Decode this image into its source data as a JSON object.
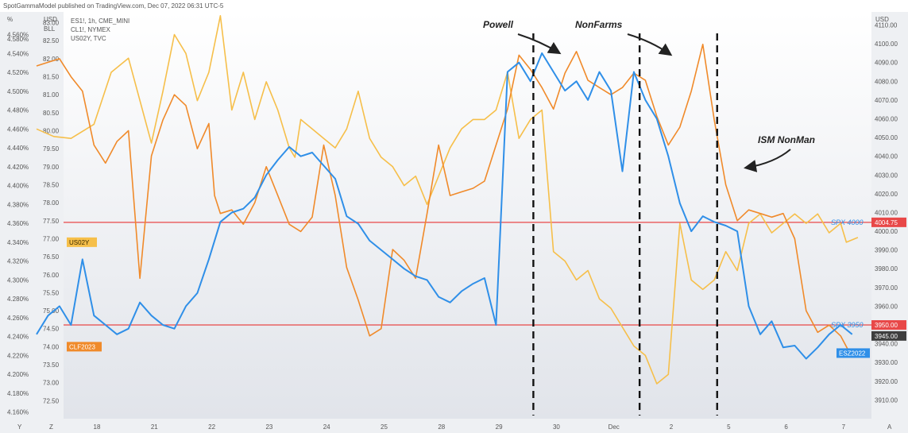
{
  "header": {
    "published": "SpotGammaModel published on TradingView.com, Dec 07, 2022 06:31 UTC-5"
  },
  "scale_headers": {
    "pct": "%",
    "usd_bll": [
      "USD",
      "BLL"
    ],
    "usd_right": "USD"
  },
  "symbols": [
    "ES1!, 1h, CME_MINI",
    "CL1!, NYMEX",
    "US02Y, TVC"
  ],
  "corner_buttons": {
    "y": "Y",
    "z": "Z",
    "a": "A"
  },
  "colors": {
    "spx": "#2f8fe8",
    "crude": "#f08a2a",
    "us02y": "#f6bf4a",
    "levels": "#e84848",
    "dashed": "#111111",
    "bg_top": "#ffffff",
    "bg_bottom": "#e1e4ea",
    "axis_bg": "#eef0f3"
  },
  "chart_data": {
    "type": "line",
    "x": {
      "categories": [
        "18",
        "21",
        "22",
        "23",
        "24",
        "25",
        "28",
        "29",
        "30",
        "Dec",
        "2",
        "5",
        "6",
        "7"
      ]
    },
    "axes": {
      "yield_pct": {
        "ticks": [
          "4.560%",
          "4.540%",
          "4.520%",
          "4.500%",
          "4.480%",
          "4.460%",
          "4.440%",
          "4.420%",
          "4.400%",
          "4.380%",
          "4.360%",
          "4.340%",
          "4.320%",
          "4.300%",
          "4.280%",
          "4.260%",
          "4.240%",
          "4.220%",
          "4.200%",
          "4.180%",
          "4.160%"
        ],
        "top_tick": "4.580%",
        "range": [
          4.153,
          4.584
        ]
      },
      "crude_usd": {
        "ticks": [
          "83.00",
          "82.50",
          "82.00",
          "81.50",
          "81.00",
          "80.50",
          "80.00",
          "79.50",
          "79.00",
          "78.50",
          "78.00",
          "77.50",
          "77.00",
          "76.50",
          "76.00",
          "75.50",
          "75.00",
          "74.50",
          "74.00",
          "73.50",
          "73.00",
          "72.50"
        ],
        "range": [
          72.0,
          83.3
        ]
      },
      "spx_usd": {
        "ticks": [
          "4110.00",
          "4100.00",
          "4090.00",
          "4080.00",
          "4070.00",
          "4060.00",
          "4050.00",
          "4040.00",
          "4030.00",
          "4020.00",
          "4010.00",
          "4000.00",
          "3990.00",
          "3980.00",
          "3970.00",
          "3960.00",
          "3950.00",
          "3940.00",
          "3930.00",
          "3920.00",
          "3910.00"
        ],
        "range": [
          3900,
          4117
        ]
      }
    },
    "series": [
      {
        "name": "US02Y",
        "axis": "yield_pct",
        "x": [
          0,
          0.3,
          0.6,
          1,
          1.3,
          1.6,
          2,
          2.2,
          2.4,
          2.6,
          2.8,
          3,
          3.2,
          3.4,
          3.6,
          3.8,
          4,
          4.2,
          4.4,
          4.5,
          4.6,
          4.8,
          5,
          5.2,
          5.4,
          5.6,
          5.8,
          6,
          6.2,
          6.4,
          6.6,
          6.8,
          7,
          7.2,
          7.4,
          7.6,
          7.8,
          8,
          8.2,
          8.4,
          8.6,
          8.8,
          9,
          9.2,
          9.4,
          9.6,
          9.8,
          10,
          10.2,
          10.4,
          10.6,
          10.8,
          11,
          11.2,
          11.4,
          11.6,
          11.8,
          12,
          12.2,
          12.4,
          12.6,
          12.8,
          13,
          13.2,
          13.4,
          13.6,
          13.8,
          14,
          14.1,
          14.3
        ],
        "values": [
          4.46,
          4.452,
          4.45,
          4.465,
          4.52,
          4.535,
          4.445,
          4.5,
          4.56,
          4.54,
          4.49,
          4.52,
          4.58,
          4.48,
          4.52,
          4.47,
          4.51,
          4.48,
          4.44,
          4.43,
          4.47,
          4.46,
          4.45,
          4.44,
          4.46,
          4.5,
          4.45,
          4.43,
          4.42,
          4.4,
          4.41,
          4.38,
          4.41,
          4.44,
          4.46,
          4.47,
          4.47,
          4.48,
          4.52,
          4.45,
          4.47,
          4.48,
          4.33,
          4.32,
          4.3,
          4.31,
          4.28,
          4.27,
          4.25,
          4.23,
          4.22,
          4.19,
          4.2,
          4.36,
          4.3,
          4.29,
          4.3,
          4.33,
          4.31,
          4.36,
          4.37,
          4.35,
          4.36,
          4.37,
          4.36,
          4.37,
          4.35,
          4.36,
          4.34,
          4.345
        ]
      },
      {
        "name": "CLF2023",
        "axis": "crude_usd",
        "x": [
          0,
          0.2,
          0.4,
          0.6,
          0.8,
          1,
          1.2,
          1.4,
          1.6,
          1.8,
          2,
          2.2,
          2.4,
          2.6,
          2.8,
          3,
          3.1,
          3.2,
          3.4,
          3.6,
          3.8,
          4,
          4.2,
          4.4,
          4.6,
          4.8,
          5,
          5.2,
          5.4,
          5.6,
          5.8,
          6,
          6.2,
          6.4,
          6.6,
          6.8,
          7,
          7.2,
          7.4,
          7.6,
          7.8,
          8,
          8.2,
          8.4,
          8.6,
          8.8,
          9,
          9.2,
          9.4,
          9.6,
          9.8,
          10,
          10.2,
          10.4,
          10.6,
          10.8,
          11,
          11.2,
          11.4,
          11.6,
          11.8,
          12,
          12.2,
          12.4,
          12.6,
          12.8,
          13,
          13.2,
          13.4,
          13.6,
          13.8,
          14,
          14.2
        ],
        "values": [
          81.8,
          81.9,
          82.0,
          81.5,
          81.1,
          79.6,
          79.1,
          79.7,
          80.0,
          75.9,
          79.3,
          80.3,
          81.0,
          80.7,
          79.5,
          80.2,
          78.2,
          77.7,
          77.8,
          77.4,
          78.0,
          79.0,
          78.2,
          77.4,
          77.2,
          77.6,
          79.6,
          78.2,
          76.2,
          75.3,
          74.3,
          74.5,
          76.7,
          76.4,
          75.9,
          77.7,
          79.6,
          78.2,
          78.3,
          78.4,
          78.6,
          79.6,
          80.6,
          82.1,
          81.7,
          81.2,
          80.6,
          81.6,
          82.2,
          81.4,
          81.2,
          81.0,
          81.2,
          81.6,
          81.4,
          80.4,
          79.6,
          80.1,
          81.1,
          82.4,
          80.3,
          78.5,
          77.5,
          77.8,
          77.7,
          77.6,
          77.7,
          77.0,
          75.0,
          74.4,
          74.6,
          74.3,
          73.7
        ]
      },
      {
        "name": "ESZ2022",
        "axis": "spx_usd",
        "x": [
          0,
          0.2,
          0.4,
          0.6,
          0.8,
          1,
          1.2,
          1.4,
          1.6,
          1.8,
          2,
          2.2,
          2.4,
          2.6,
          2.8,
          3,
          3.2,
          3.4,
          3.6,
          3.8,
          4,
          4.2,
          4.4,
          4.6,
          4.8,
          5,
          5.2,
          5.4,
          5.6,
          5.8,
          6,
          6.2,
          6.4,
          6.6,
          6.8,
          7,
          7.2,
          7.4,
          7.6,
          7.8,
          8,
          8.2,
          8.4,
          8.6,
          8.8,
          9,
          9.2,
          9.4,
          9.6,
          9.8,
          10,
          10.2,
          10.4,
          10.6,
          10.8,
          11,
          11.2,
          11.4,
          11.6,
          11.8,
          12,
          12.2,
          12.4,
          12.6,
          12.8,
          13,
          13.2,
          13.4,
          13.6,
          13.8,
          14,
          14.2
        ],
        "values": [
          3945,
          3955,
          3960,
          3950,
          3985,
          3955,
          3950,
          3945,
          3948,
          3962,
          3955,
          3950,
          3948,
          3960,
          3967,
          3985,
          4005,
          4010,
          4012,
          4018,
          4030,
          4038,
          4045,
          4040,
          4042,
          4035,
          4028,
          4008,
          4004,
          3995,
          3990,
          3985,
          3980,
          3976,
          3974,
          3965,
          3962,
          3968,
          3972,
          3975,
          3950,
          4085,
          4090,
          4080,
          4095,
          4085,
          4075,
          4080,
          4070,
          4085,
          4075,
          4032,
          4085,
          4070,
          4060,
          4040,
          4015,
          4000,
          4008,
          4005,
          4003,
          4000,
          3960,
          3945,
          3952,
          3938,
          3939,
          3932,
          3938,
          3945,
          3950,
          3945
        ]
      }
    ],
    "series_tags": {
      "US02Y": "US02Y",
      "CLF2023": "CLF2023",
      "ESZ2022": "ESZ2022"
    },
    "horizontal_levels": [
      {
        "value": 4004.75,
        "axis": "spx_usd",
        "line_label": "SPX 4000",
        "badge": "4004.75"
      },
      {
        "value": 3950.0,
        "axis": "spx_usd",
        "line_label": "SPX 3950",
        "badge": "3950.00"
      }
    ],
    "price_badge": {
      "value": 3945.0,
      "text": "3945.00"
    },
    "vertical_markers_x": [
      8.65,
      10.5,
      11.85
    ],
    "annotations": [
      "Powell",
      "NonFarms",
      "ISM NonMan"
    ],
    "grid": false
  }
}
